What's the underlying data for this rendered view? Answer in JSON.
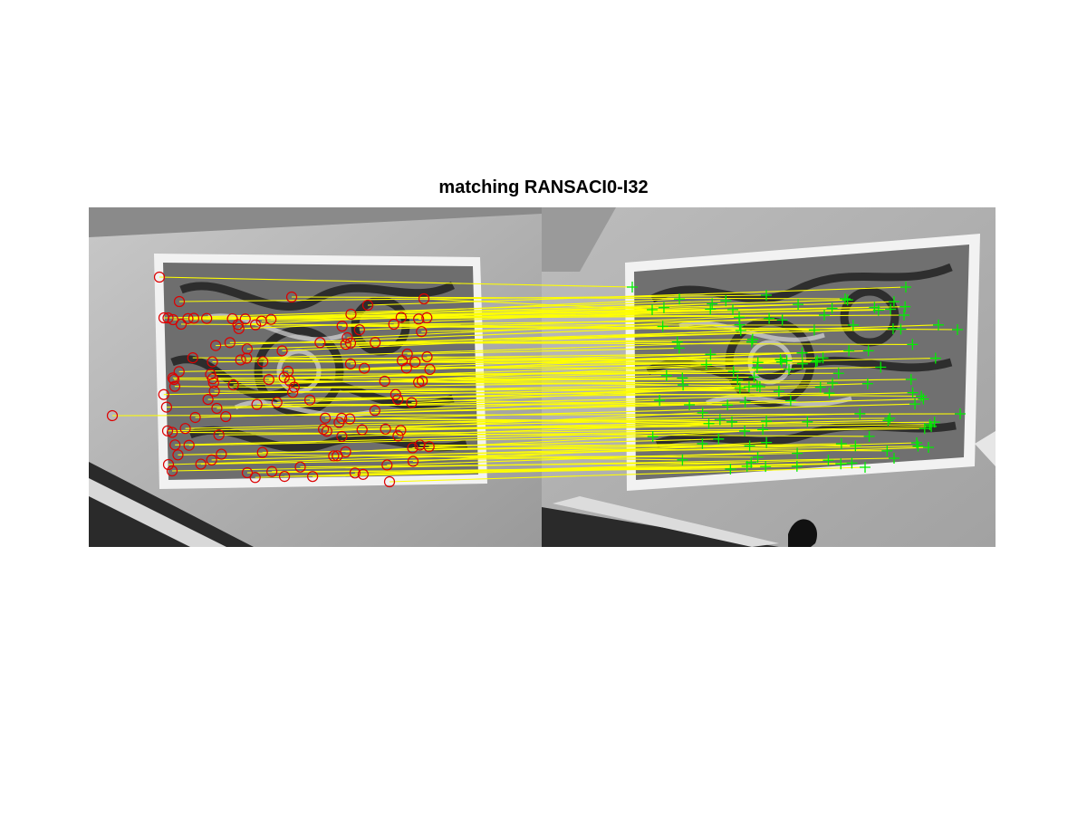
{
  "figure": {
    "title": "matching RANSACI0-I32"
  },
  "colors": {
    "background": "#ffffff",
    "match_line": "#ffff00",
    "left_keypoint": "#dd0000",
    "right_keypoint": "#00ee00"
  },
  "marker_icons": {
    "left": "red-circle-marker",
    "right": "green-plus-marker"
  },
  "image_left_name": "I0",
  "image_right_name": "I32"
}
